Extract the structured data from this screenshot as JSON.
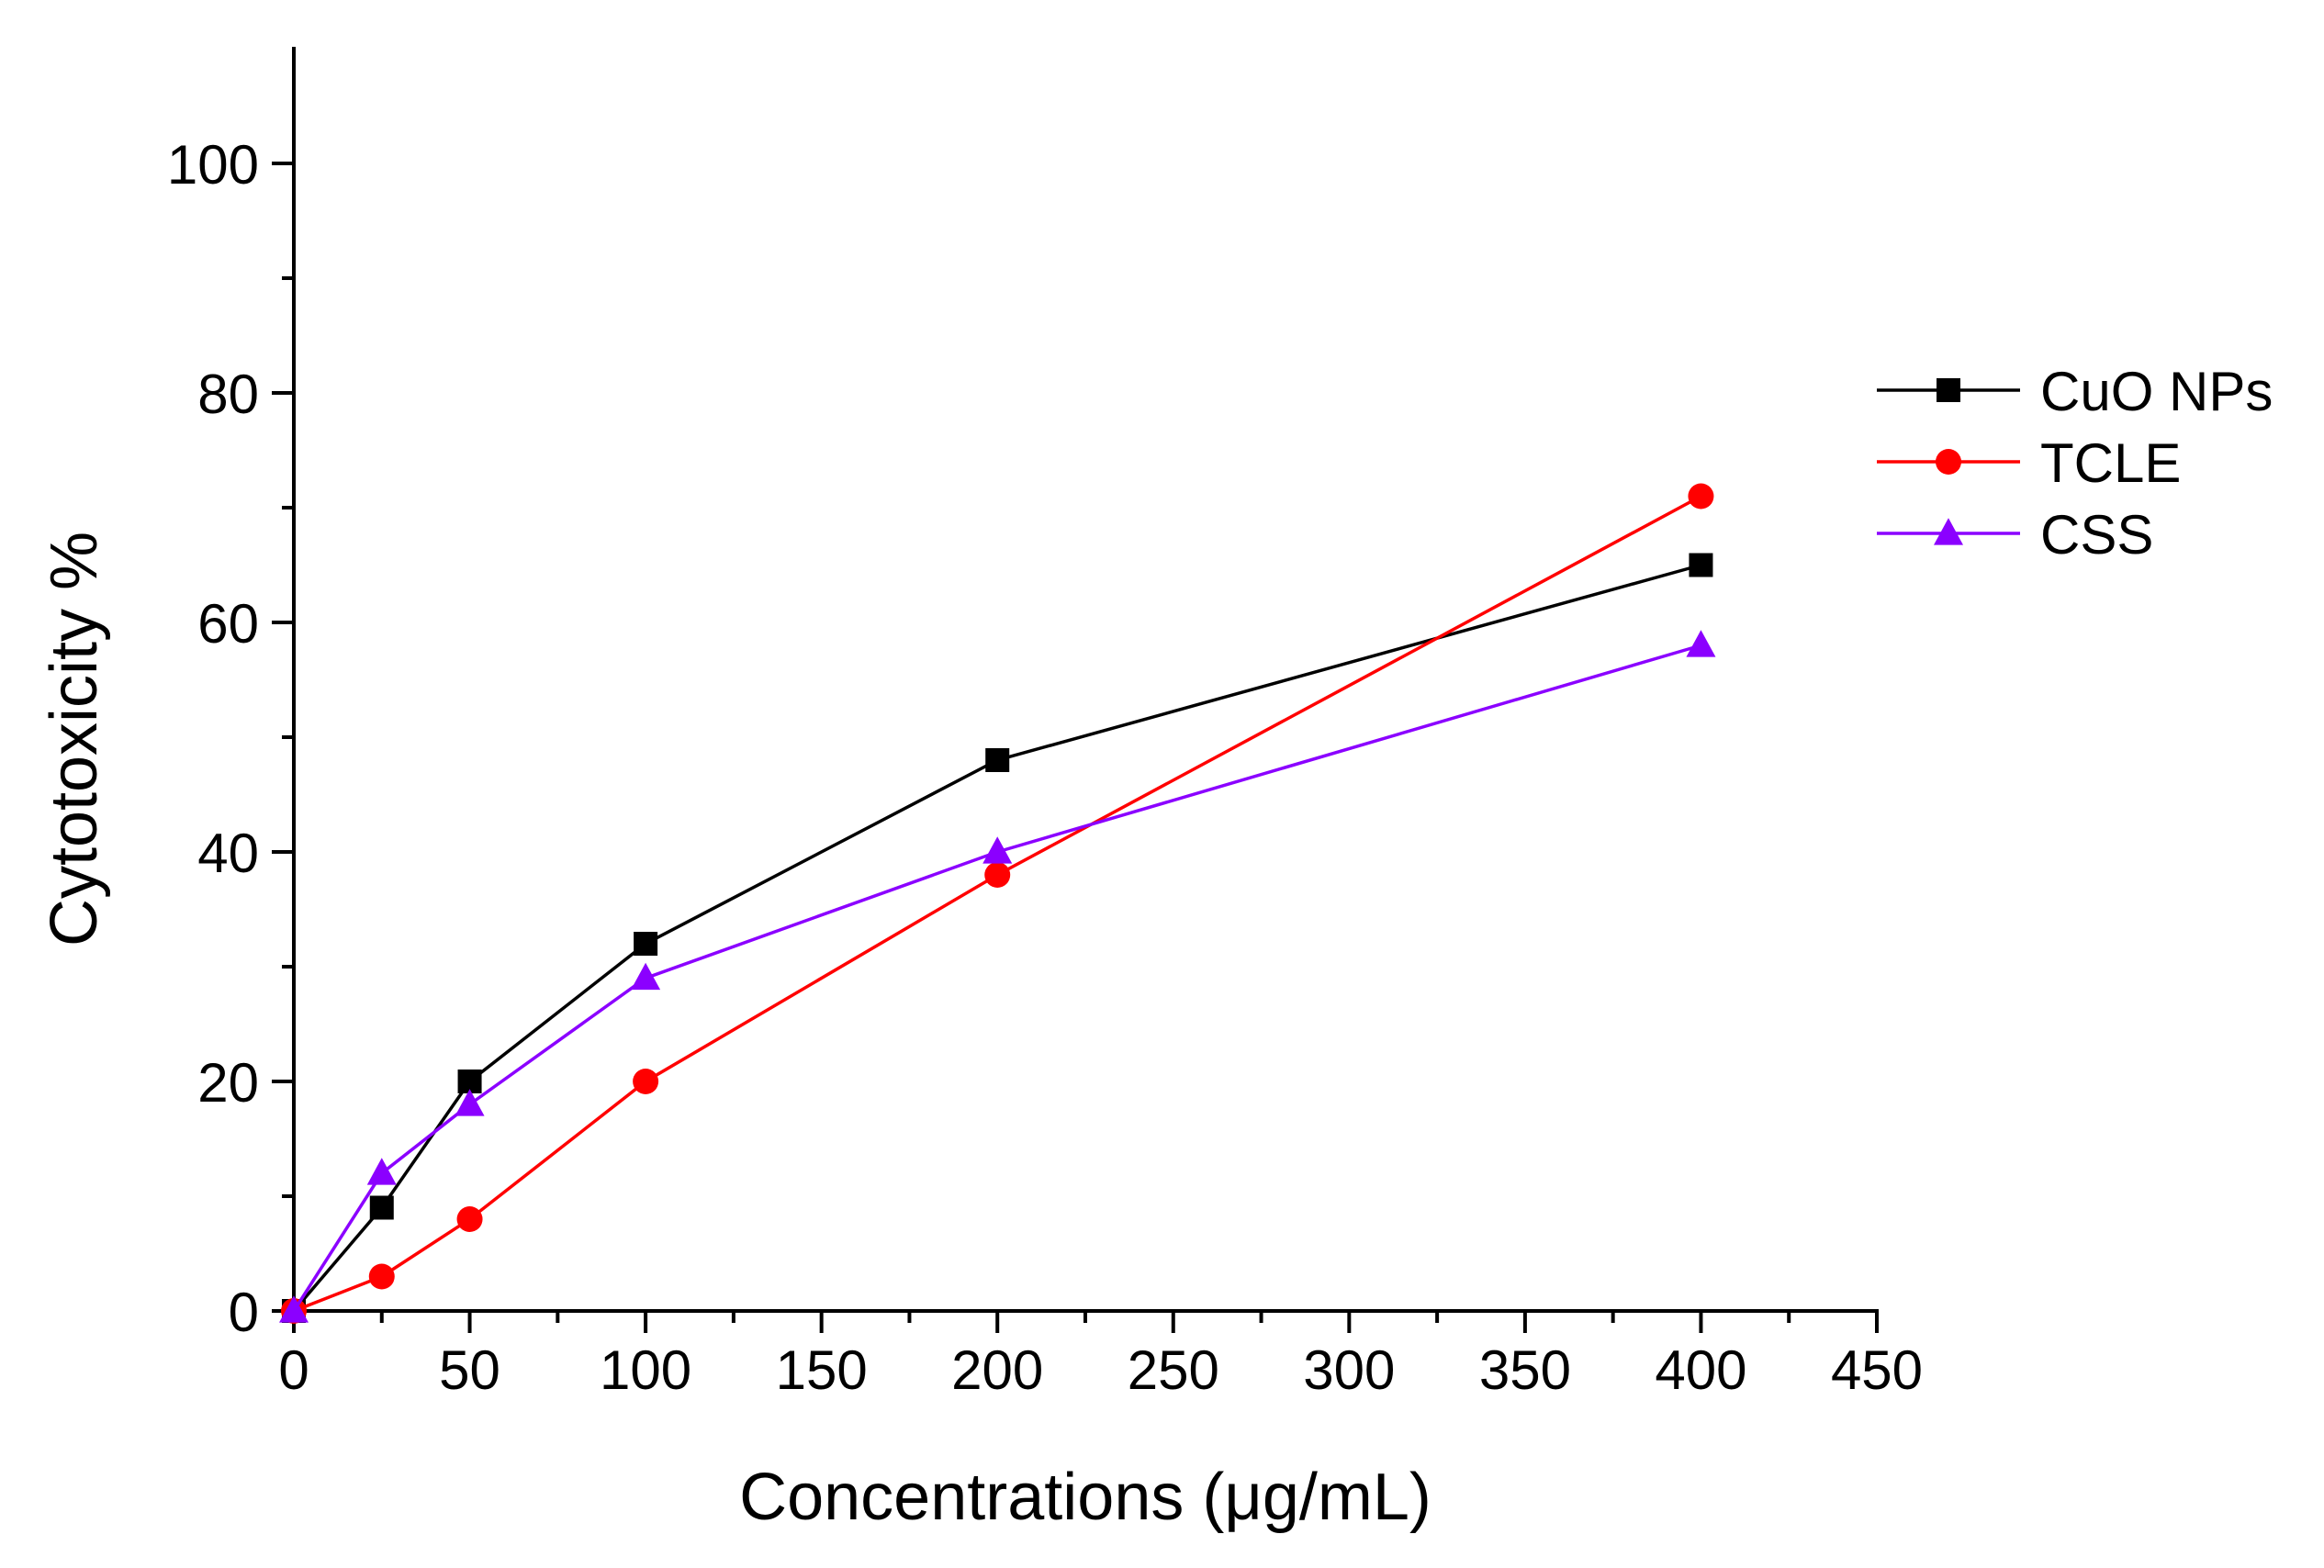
{
  "chart_data": {
    "type": "line",
    "title": "",
    "xlabel": "Concentrations (μg/mL)",
    "ylabel": "Cytotoxicity %",
    "xlim": [
      0,
      450
    ],
    "ylim": [
      0,
      110
    ],
    "x_ticks": [
      0,
      50,
      100,
      150,
      200,
      250,
      300,
      350,
      400,
      450
    ],
    "y_ticks": [
      0,
      20,
      40,
      60,
      80,
      100
    ],
    "x_tick_labels": [
      "0",
      "50",
      "100",
      "150",
      "200",
      "250",
      "300",
      "350",
      "400",
      "450"
    ],
    "y_tick_labels": [
      "0",
      "20",
      "40",
      "60",
      "80",
      "100"
    ],
    "grid": false,
    "legend_position": "right",
    "x": [
      0,
      25,
      50,
      100,
      200,
      400
    ],
    "series": [
      {
        "name": "CuO NPs",
        "color": "#000000",
        "marker": "square",
        "values": [
          0,
          9,
          20,
          32,
          48,
          65
        ]
      },
      {
        "name": "TCLE",
        "color": "#ff0000",
        "marker": "circle",
        "values": [
          0,
          3,
          8,
          20,
          38,
          71
        ]
      },
      {
        "name": "CSS",
        "color": "#8b00ff",
        "marker": "triangle",
        "values": [
          0,
          12,
          18,
          29,
          40,
          58
        ]
      }
    ]
  }
}
